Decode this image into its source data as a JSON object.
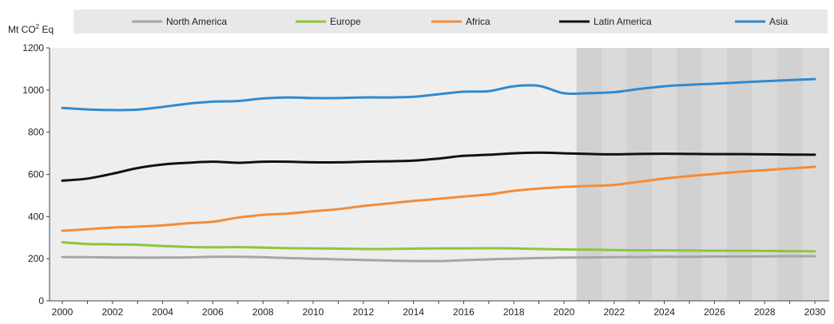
{
  "chart_data": {
    "type": "line",
    "title": "",
    "xlabel": "",
    "ylabel": "Mt CO2 Eq",
    "unit_prefix": "Mt CO",
    "unit_superscript": "2",
    "unit_suffix": " Eq",
    "x": [
      2000,
      2001,
      2002,
      2003,
      2004,
      2005,
      2006,
      2007,
      2008,
      2009,
      2010,
      2011,
      2012,
      2013,
      2014,
      2015,
      2016,
      2017,
      2018,
      2019,
      2020,
      2021,
      2022,
      2023,
      2024,
      2025,
      2026,
      2027,
      2028,
      2029,
      2030
    ],
    "xticks": [
      2000,
      2002,
      2004,
      2006,
      2008,
      2010,
      2012,
      2014,
      2016,
      2018,
      2020,
      2022,
      2024,
      2026,
      2028,
      2030
    ],
    "xlim": [
      2000,
      2030
    ],
    "ylim": [
      0,
      1200
    ],
    "yticks": [
      0,
      200,
      400,
      600,
      800,
      1000,
      1200
    ],
    "projection_start": 2020.5,
    "projection_end": 2030.5,
    "grid": "vertical bands in projection period",
    "legend_position": "top",
    "series": [
      {
        "name": "North America",
        "color": "#a6a6a6",
        "values": [
          208,
          207,
          206,
          205,
          205,
          206,
          209,
          209,
          207,
          203,
          200,
          197,
          194,
          191,
          189,
          189,
          193,
          197,
          200,
          203,
          205,
          206,
          207,
          208,
          209,
          209,
          210,
          210,
          211,
          212,
          212
        ]
      },
      {
        "name": "Europe",
        "color": "#8cc63e",
        "values": [
          278,
          270,
          268,
          266,
          260,
          256,
          254,
          255,
          253,
          250,
          249,
          248,
          246,
          246,
          248,
          249,
          249,
          250,
          249,
          246,
          244,
          243,
          241,
          240,
          240,
          239,
          238,
          238,
          237,
          236,
          235
        ]
      },
      {
        "name": "Africa",
        "color": "#f28c3a",
        "values": [
          332,
          340,
          348,
          352,
          358,
          368,
          375,
          395,
          408,
          414,
          425,
          435,
          450,
          462,
          474,
          484,
          495,
          505,
          522,
          533,
          540,
          545,
          550,
          565,
          580,
          592,
          602,
          612,
          620,
          628,
          636
        ]
      },
      {
        "name": "Latin America",
        "color": "#111111",
        "values": [
          570,
          580,
          603,
          630,
          647,
          655,
          660,
          655,
          660,
          660,
          657,
          657,
          660,
          662,
          665,
          675,
          688,
          693,
          700,
          703,
          700,
          697,
          695,
          697,
          698,
          697,
          696,
          696,
          695,
          694,
          693
        ]
      },
      {
        "name": "Asia",
        "color": "#2f8ad0",
        "values": [
          915,
          908,
          905,
          907,
          920,
          935,
          945,
          948,
          960,
          965,
          962,
          962,
          965,
          965,
          968,
          980,
          992,
          995,
          1018,
          1020,
          985,
          985,
          990,
          1005,
          1018,
          1025,
          1030,
          1036,
          1042,
          1047,
          1052
        ]
      }
    ]
  }
}
